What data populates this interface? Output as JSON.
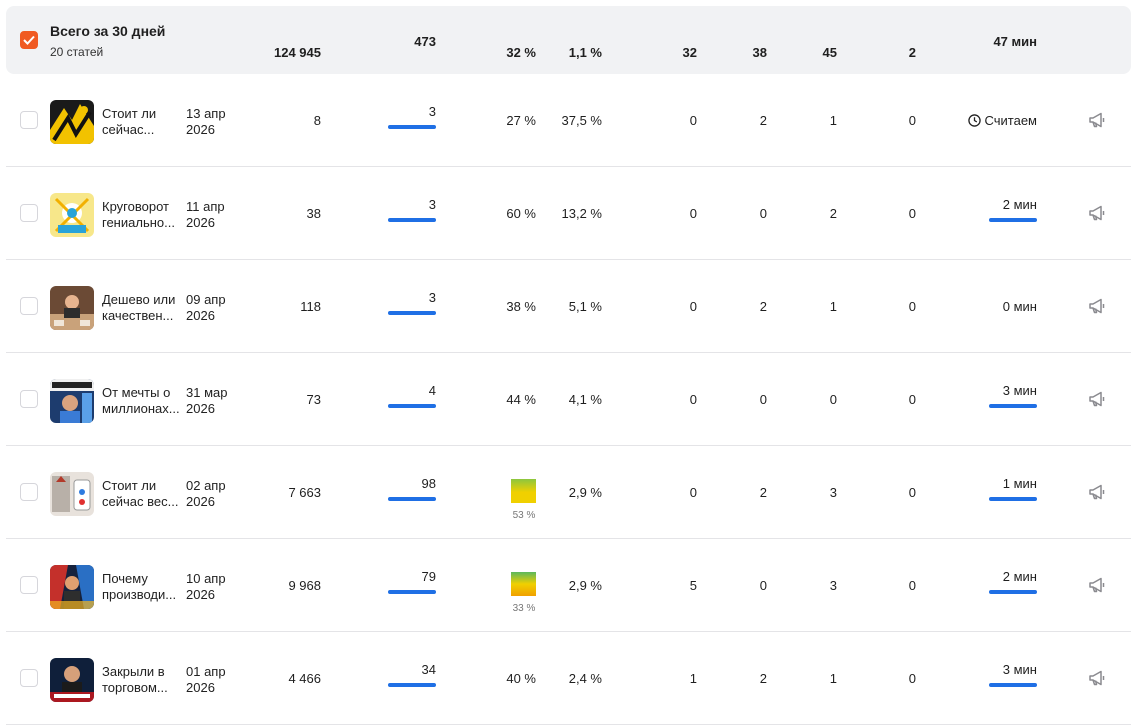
{
  "summary": {
    "title": "Всего за 30 дней",
    "subtitle": "20 статей",
    "views": "124 945",
    "reads": "473",
    "read_pct": "32 %",
    "ctr": "1,1 %",
    "c1": "32",
    "c2": "38",
    "c3": "45",
    "c4": "2",
    "time": "47 мин"
  },
  "rows": [
    {
      "title1": "Стоит ли",
      "title2": "сейчас...",
      "date1": "13 апр",
      "date2": "2026",
      "views": "8",
      "reads": "3",
      "read_pct": "27 %",
      "ctr": "37,5 %",
      "c1": "0",
      "c2": "2",
      "c3": "1",
      "c4": "0",
      "time": "Считаем"
    },
    {
      "title1": "Круговорот",
      "title2": "гениально...",
      "date1": "11 апр",
      "date2": "2026",
      "views": "38",
      "reads": "3",
      "read_pct": "60 %",
      "ctr": "13,2 %",
      "c1": "0",
      "c2": "0",
      "c3": "2",
      "c4": "0",
      "time": "2 мин"
    },
    {
      "title1": "Дешево или",
      "title2": "качествен...",
      "date1": "09 апр",
      "date2": "2026",
      "views": "118",
      "reads": "3",
      "read_pct": "38 %",
      "ctr": "5,1 %",
      "c1": "0",
      "c2": "2",
      "c3": "1",
      "c4": "0",
      "time": "0 мин"
    },
    {
      "title1": "От мечты о",
      "title2": "миллионах...",
      "date1": "31 мар",
      "date2": "2026",
      "views": "73",
      "reads": "4",
      "read_pct": "44 %",
      "ctr": "4,1 %",
      "c1": "0",
      "c2": "0",
      "c3": "0",
      "c4": "0",
      "time": "3 мин"
    },
    {
      "title1": "Стоит ли",
      "title2": "сейчас вес...",
      "date1": "02 апр",
      "date2": "2026",
      "views": "7 663",
      "reads": "98",
      "read_pct": "53 %",
      "ctr": "2,9 %",
      "c1": "0",
      "c2": "2",
      "c3": "3",
      "c4": "0",
      "time": "1 мин"
    },
    {
      "title1": "Почему",
      "title2": "производи...",
      "date1": "10 апр",
      "date2": "2026",
      "views": "9 968",
      "reads": "79",
      "read_pct": "33 %",
      "ctr": "2,9 %",
      "c1": "5",
      "c2": "0",
      "c3": "3",
      "c4": "0",
      "time": "2 мин"
    },
    {
      "title1": "Закрыли в",
      "title2": "торговом...",
      "date1": "01 апр",
      "date2": "2026",
      "views": "4 466",
      "reads": "34",
      "read_pct": "40 %",
      "ctr": "2,4 %",
      "c1": "1",
      "c2": "2",
      "c3": "1",
      "c4": "0",
      "time": "3 мин"
    }
  ],
  "icons": {
    "checkbox_checked": "check-icon",
    "clock": "clock-icon",
    "promote": "megaphone-icon"
  },
  "colors": {
    "accent": "#f05a22",
    "bar": "#1f6fe5",
    "summary_bg": "#f1f2f4"
  }
}
